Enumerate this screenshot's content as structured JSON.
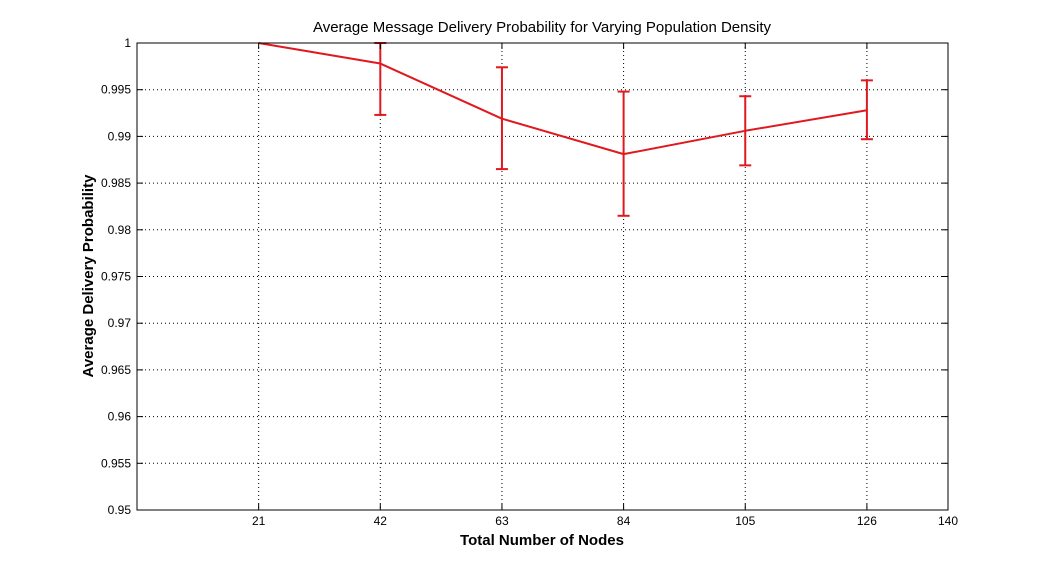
{
  "chart_data": {
    "type": "line",
    "title": "Average Message Delivery Probability for Varying Population Density",
    "xlabel": "Total Number of Nodes",
    "ylabel": "Average Delivery Probability",
    "xlim": [
      0,
      140
    ],
    "ylim": [
      0.95,
      1.0
    ],
    "x_ticks": [
      21,
      42,
      63,
      84,
      105,
      126,
      140
    ],
    "x_tick_labels": [
      "21",
      "42",
      "63",
      "84",
      "105",
      "126",
      "140"
    ],
    "y_ticks": [
      0.95,
      0.955,
      0.96,
      0.965,
      0.97,
      0.975,
      0.98,
      0.985,
      0.99,
      0.995,
      1.0
    ],
    "y_tick_labels": [
      "0.95",
      "0.955",
      "0.96",
      "0.965",
      "0.97",
      "0.975",
      "0.98",
      "0.985",
      "0.99",
      "0.995",
      "1"
    ],
    "grid": true,
    "series": [
      {
        "color": "#e0191e",
        "x": [
          21,
          42,
          63,
          84,
          105,
          126
        ],
        "y": [
          1.0,
          0.9978,
          0.9919,
          0.9881,
          0.9906,
          0.9928
        ],
        "error_lower": [
          1.0,
          0.9923,
          0.9865,
          0.9815,
          0.9869,
          0.9897
        ],
        "error_upper": [
          1.0,
          1.0,
          0.9974,
          0.9948,
          0.9943,
          0.996
        ]
      }
    ]
  }
}
